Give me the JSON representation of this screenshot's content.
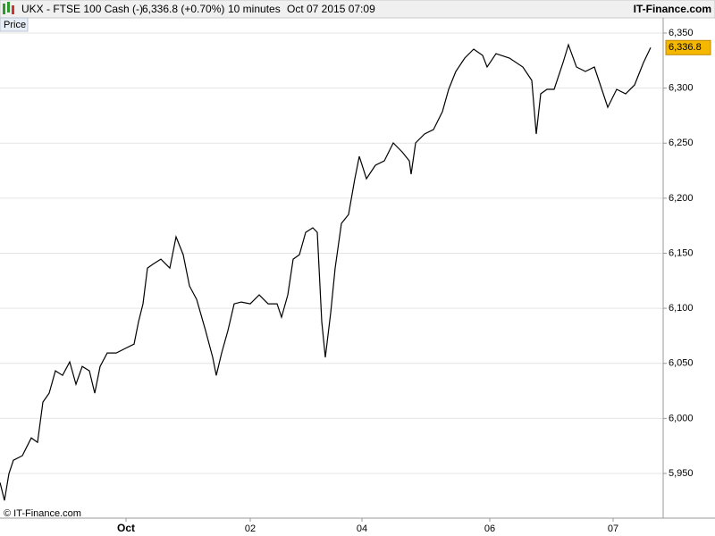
{
  "header": {
    "instrument": "UKX - FTSE 100 Cash (-)",
    "quote": "6,336.8 (+0.70%)",
    "interval": "10 minutes",
    "timestamp": "Oct 07 2015 07:09",
    "brand": "IT-Finance.com"
  },
  "panel_label": "Price",
  "copyright": "© IT-Finance.com",
  "chart_data": {
    "type": "line",
    "x": [
      0,
      5,
      10,
      15,
      25,
      35,
      42,
      48,
      55,
      62,
      70,
      78,
      85,
      92,
      100,
      106,
      112,
      120,
      130,
      140,
      150,
      155,
      160,
      165,
      172,
      180,
      190,
      197,
      205,
      212,
      220,
      230,
      238,
      242,
      248,
      255,
      262,
      270,
      280,
      290,
      300,
      310,
      315,
      322,
      328,
      335,
      342,
      350,
      355,
      360,
      364,
      370,
      375,
      382,
      390,
      397,
      402,
      410,
      420,
      430,
      440,
      450,
      458,
      460,
      465,
      475,
      485,
      495,
      502,
      510,
      520,
      530,
      540,
      545,
      555,
      570,
      585,
      595,
      600,
      605,
      612,
      620,
      630,
      636,
      645,
      655,
      665,
      675,
      680,
      690,
      700,
      710,
      720,
      728
    ],
    "series": [
      {
        "name": "Price",
        "color": "#000000",
        "values": [
          5941.7,
          5925.5,
          5949.8,
          5962,
          5966.1,
          5982.3,
          5978.2,
          6014.8,
          6022.9,
          6043.2,
          6039.1,
          6051.3,
          6031,
          6047.2,
          6043.2,
          6022.9,
          6047.2,
          6059.4,
          6059.4,
          6063.5,
          6067.5,
          6087.8,
          6104.1,
          6136.5,
          6140.6,
          6144.6,
          6136.5,
          6164.9,
          6148.7,
          6120.3,
          6108.1,
          6079.7,
          6055.4,
          6039.1,
          6059.4,
          6079.7,
          6104.1,
          6105.7,
          6104.1,
          6112.2,
          6104.1,
          6104.1,
          6091.9,
          6112.2,
          6144.6,
          6148.7,
          6169,
          6173.1,
          6169,
          6087.8,
          6055.4,
          6095.9,
          6136.5,
          6177.1,
          6185.2,
          6217.7,
          6238,
          6217.7,
          6229.9,
          6233.9,
          6250.2,
          6242,
          6233.9,
          6221.8,
          6250.2,
          6258.3,
          6262.3,
          6278.6,
          6298.9,
          6315.1,
          6327.3,
          6335.4,
          6329.7,
          6319.2,
          6331.3,
          6327.3,
          6319.2,
          6307,
          6258.3,
          6294.8,
          6298.9,
          6298.9,
          6323.2,
          6339.4,
          6319.2,
          6315.1,
          6319.2,
          6294.8,
          6282.6,
          6298.9,
          6294.8,
          6302.9,
          6323.2,
          6336.8
        ]
      }
    ],
    "xlim": [
      0,
      742
    ],
    "xticks": [
      {
        "value": 141,
        "label": "Oct"
      },
      {
        "value": 280,
        "label": "02"
      },
      {
        "value": 405,
        "label": "04"
      },
      {
        "value": 548,
        "label": "06"
      },
      {
        "value": 686,
        "label": "07"
      }
    ],
    "ylim": [
      5909.4,
      6363.8
    ],
    "yticks": [
      {
        "value": 5950,
        "label": "5,950"
      },
      {
        "value": 6000,
        "label": "6,000"
      },
      {
        "value": 6050,
        "label": "6,050"
      },
      {
        "value": 6100,
        "label": "6,100"
      },
      {
        "value": 6150,
        "label": "6,150"
      },
      {
        "value": 6200,
        "label": "6,200"
      },
      {
        "value": 6250,
        "label": "6,250"
      },
      {
        "value": 6300,
        "label": "6,300"
      },
      {
        "value": 6350,
        "label": "6,350"
      }
    ],
    "last_price": {
      "value": 6336.8,
      "label": "6,336.8"
    },
    "last_price_color": "#f5b800",
    "grid": true
  }
}
